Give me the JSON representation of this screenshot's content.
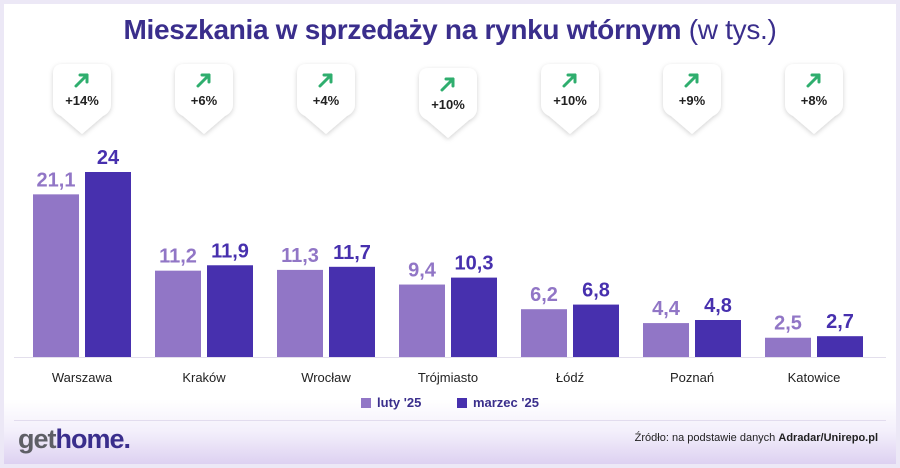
{
  "title": {
    "main": "Mieszkania w sprzedaży na rynku wtórnym",
    "unit": "(w tys.)"
  },
  "chart_data": {
    "type": "bar",
    "title": "Mieszkania w sprzedaży na rynku wtórnym (w tys.)",
    "categories": [
      "Warszawa",
      "Kraków",
      "Wrocław",
      "Trójmiasto",
      "Łódź",
      "Poznań",
      "Katowice"
    ],
    "series": [
      {
        "name": "luty '25",
        "color": "#9176c6",
        "values": [
          21.1,
          11.2,
          11.3,
          9.4,
          6.2,
          4.4,
          2.5
        ],
        "labels": [
          "21,1",
          "11,2",
          "11,3",
          "9,4",
          "6,2",
          "4,4",
          "2,5"
        ]
      },
      {
        "name": "marzec '25",
        "color": "#4730ae",
        "values": [
          24,
          11.9,
          11.7,
          10.3,
          6.8,
          4.8,
          2.7
        ],
        "labels": [
          "24",
          "11,9",
          "11,7",
          "10,3",
          "6,8",
          "4,8",
          "2,7"
        ]
      }
    ],
    "changes": [
      "+14%",
      "+6%",
      "+4%",
      "+10%",
      "+10%",
      "+9%",
      "+8%"
    ],
    "change_icon": "arrow-up-right-icon",
    "change_color": "#2fae6e",
    "ylim": [
      0,
      24
    ],
    "grid": false,
    "legend_position": "bottom-center"
  },
  "legend": {
    "items": [
      {
        "label": "luty '25",
        "color": "#9176c6"
      },
      {
        "label": "marzec '25",
        "color": "#4730ae"
      }
    ]
  },
  "footer": {
    "logo_get": "get",
    "logo_home": "home.",
    "source_prefix": "Źródło: na podstawie danych",
    "source_bold": "Adradar/Unirepo.pl"
  },
  "colors": {
    "title": "#3a2e8c",
    "bar_feb": "#9176c6",
    "bar_mar": "#4730ae",
    "arrow": "#2fae6e"
  }
}
